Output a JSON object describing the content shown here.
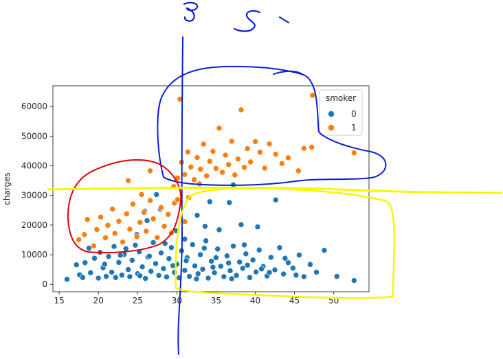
{
  "chart_data": {
    "type": "scatter",
    "title": "",
    "xlabel": "",
    "ylabel": "charges",
    "xlim": [
      14.2,
      54.5
    ],
    "ylim": [
      -2500,
      67000
    ],
    "xticks": [
      "15",
      "20",
      "25",
      "30",
      "35",
      "40",
      "45",
      "50"
    ],
    "yticks": [
      "0",
      "10000",
      "20000",
      "30000",
      "40000",
      "50000",
      "60000"
    ],
    "grid": false,
    "legend": {
      "title": "smoker",
      "placement": "top-right",
      "entries": [
        {
          "label": "0",
          "color": "#1f77b4"
        },
        {
          "label": "1",
          "color": "#ff7f0e"
        }
      ]
    },
    "series": [
      {
        "name": "0",
        "color": "#1f77b4",
        "points": [
          [
            16.0,
            1700
          ],
          [
            17.2,
            6600
          ],
          [
            17.6,
            3200
          ],
          [
            18.0,
            2300
          ],
          [
            18.3,
            7300
          ],
          [
            18.8,
            12200
          ],
          [
            19.0,
            3900
          ],
          [
            19.5,
            8800
          ],
          [
            20.0,
            2100
          ],
          [
            20.2,
            10800
          ],
          [
            20.6,
            5600
          ],
          [
            21.0,
            2700
          ],
          [
            21.3,
            9400
          ],
          [
            21.7,
            4100
          ],
          [
            22.0,
            12800
          ],
          [
            22.2,
            2300
          ],
          [
            22.6,
            7400
          ],
          [
            23.0,
            3100
          ],
          [
            23.3,
            10100
          ],
          [
            23.8,
            5000
          ],
          [
            24.0,
            2600
          ],
          [
            24.3,
            8100
          ],
          [
            24.7,
            13200
          ],
          [
            25.0,
            3600
          ],
          [
            25.2,
            11000
          ],
          [
            25.6,
            5900
          ],
          [
            26.0,
            2000
          ],
          [
            26.3,
            9200
          ],
          [
            26.7,
            4400
          ],
          [
            27.0,
            14100
          ],
          [
            27.3,
            7000
          ],
          [
            27.7,
            3000
          ],
          [
            28.0,
            10600
          ],
          [
            28.3,
            5300
          ],
          [
            28.7,
            2500
          ],
          [
            29.0,
            8700
          ],
          [
            29.3,
            12400
          ],
          [
            29.7,
            4000
          ],
          [
            30.0,
            6800
          ],
          [
            30.3,
            2200
          ],
          [
            30.6,
            11300
          ],
          [
            31.0,
            4700
          ],
          [
            31.3,
            9000
          ],
          [
            31.6,
            2700
          ],
          [
            32.0,
            13400
          ],
          [
            32.3,
            6200
          ],
          [
            32.7,
            3600
          ],
          [
            33.0,
            10000
          ],
          [
            33.3,
            5100
          ],
          [
            33.7,
            14700
          ],
          [
            34.0,
            2100
          ],
          [
            34.4,
            7800
          ],
          [
            34.8,
            3900
          ],
          [
            35.2,
            11900
          ],
          [
            35.6,
            6100
          ],
          [
            36.0,
            2600
          ],
          [
            36.4,
            9600
          ],
          [
            36.8,
            4600
          ],
          [
            37.2,
            12900
          ],
          [
            37.6,
            3000
          ],
          [
            38.0,
            7500
          ],
          [
            38.4,
            5400
          ],
          [
            38.8,
            10300
          ],
          [
            39.3,
            2300
          ],
          [
            39.7,
            8200
          ],
          [
            40.1,
            4200
          ],
          [
            40.5,
            11600
          ],
          [
            41.0,
            6000
          ],
          [
            41.5,
            2800
          ],
          [
            42.0,
            9100
          ],
          [
            42.5,
            4900
          ],
          [
            43.1,
            12400
          ],
          [
            43.6,
            3500
          ],
          [
            44.2,
            7300
          ],
          [
            44.8,
            5500
          ],
          [
            45.6,
            9900
          ],
          [
            46.2,
            2600
          ],
          [
            47.0,
            6700
          ],
          [
            47.8,
            4100
          ],
          [
            48.8,
            11500
          ],
          [
            50.4,
            2700
          ],
          [
            52.6,
            1300
          ],
          [
            20.8,
            6800
          ],
          [
            23.5,
            12000
          ],
          [
            26.5,
            9500
          ],
          [
            28.5,
            13800
          ],
          [
            31.2,
            8000
          ],
          [
            33.5,
            12200
          ],
          [
            35.0,
            9000
          ],
          [
            36.6,
            7200
          ],
          [
            38.6,
            13300
          ],
          [
            40.8,
            5200
          ],
          [
            25.3,
            2900
          ],
          [
            29.5,
            6300
          ],
          [
            32.5,
            1800
          ],
          [
            34.6,
            5800
          ],
          [
            37.0,
            1900
          ],
          [
            39.0,
            6500
          ],
          [
            41.8,
            4000
          ],
          [
            43.8,
            8800
          ],
          [
            45.2,
            3100
          ],
          [
            22.8,
            9800
          ],
          [
            24.9,
            16800
          ],
          [
            26.2,
            21500
          ],
          [
            27.4,
            30300
          ],
          [
            27.9,
            25400
          ],
          [
            31.0,
            15300
          ],
          [
            32.6,
            23300
          ],
          [
            33.6,
            19600
          ],
          [
            34.2,
            27900
          ],
          [
            35.4,
            18400
          ],
          [
            36.7,
            27600
          ],
          [
            38.2,
            20100
          ],
          [
            40.3,
            19400
          ],
          [
            42.6,
            28500
          ],
          [
            37.2,
            33600
          ],
          [
            29.9,
            18100
          ],
          [
            25.9,
            24700
          ]
        ]
      },
      {
        "name": "1",
        "color": "#ff7f0e",
        "points": [
          [
            17.5,
            15100
          ],
          [
            18.2,
            16800
          ],
          [
            18.6,
            21900
          ],
          [
            19.4,
            13000
          ],
          [
            19.8,
            18500
          ],
          [
            20.3,
            22700
          ],
          [
            20.9,
            15700
          ],
          [
            21.2,
            19900
          ],
          [
            21.8,
            25400
          ],
          [
            22.1,
            17200
          ],
          [
            22.6,
            21300
          ],
          [
            23.1,
            14300
          ],
          [
            23.6,
            23800
          ],
          [
            24.0,
            18600
          ],
          [
            24.4,
            27100
          ],
          [
            24.9,
            16100
          ],
          [
            25.3,
            20900
          ],
          [
            25.8,
            24300
          ],
          [
            26.1,
            17900
          ],
          [
            26.6,
            28300
          ],
          [
            27.0,
            22100
          ],
          [
            27.5,
            15800
          ],
          [
            28.0,
            25900
          ],
          [
            28.4,
            19600
          ],
          [
            28.9,
            23600
          ],
          [
            29.3,
            17300
          ],
          [
            29.7,
            27400
          ],
          [
            25.5,
            30300
          ],
          [
            23.8,
            35000
          ],
          [
            26.6,
            38300
          ],
          [
            30.1,
            35900
          ],
          [
            30.6,
            41200
          ],
          [
            31.0,
            37100
          ],
          [
            31.4,
            44700
          ],
          [
            31.8,
            39600
          ],
          [
            32.2,
            35300
          ],
          [
            32.6,
            42800
          ],
          [
            33.0,
            38900
          ],
          [
            33.4,
            47300
          ],
          [
            33.8,
            36600
          ],
          [
            34.2,
            41500
          ],
          [
            34.6,
            44900
          ],
          [
            35.0,
            39100
          ],
          [
            35.4,
            52700
          ],
          [
            35.8,
            37800
          ],
          [
            36.2,
            43600
          ],
          [
            36.6,
            40400
          ],
          [
            37.0,
            48300
          ],
          [
            37.4,
            36900
          ],
          [
            37.8,
            42300
          ],
          [
            38.2,
            58900
          ],
          [
            38.6,
            39500
          ],
          [
            39.0,
            45800
          ],
          [
            39.4,
            41300
          ],
          [
            40.0,
            48200
          ],
          [
            40.6,
            44600
          ],
          [
            41.2,
            39200
          ],
          [
            41.8,
            47400
          ],
          [
            42.6,
            43900
          ],
          [
            43.4,
            40800
          ],
          [
            44.2,
            42700
          ],
          [
            45.5,
            38300
          ],
          [
            46.2,
            45900
          ],
          [
            47.2,
            46300
          ],
          [
            52.6,
            44400
          ],
          [
            47.3,
            63800
          ],
          [
            30.4,
            62500
          ],
          [
            31.0,
            21200
          ],
          [
            30.1,
            28600
          ],
          [
            29.6,
            33000
          ],
          [
            31.5,
            29300
          ],
          [
            32.9,
            33900
          ]
        ]
      }
    ]
  }
}
